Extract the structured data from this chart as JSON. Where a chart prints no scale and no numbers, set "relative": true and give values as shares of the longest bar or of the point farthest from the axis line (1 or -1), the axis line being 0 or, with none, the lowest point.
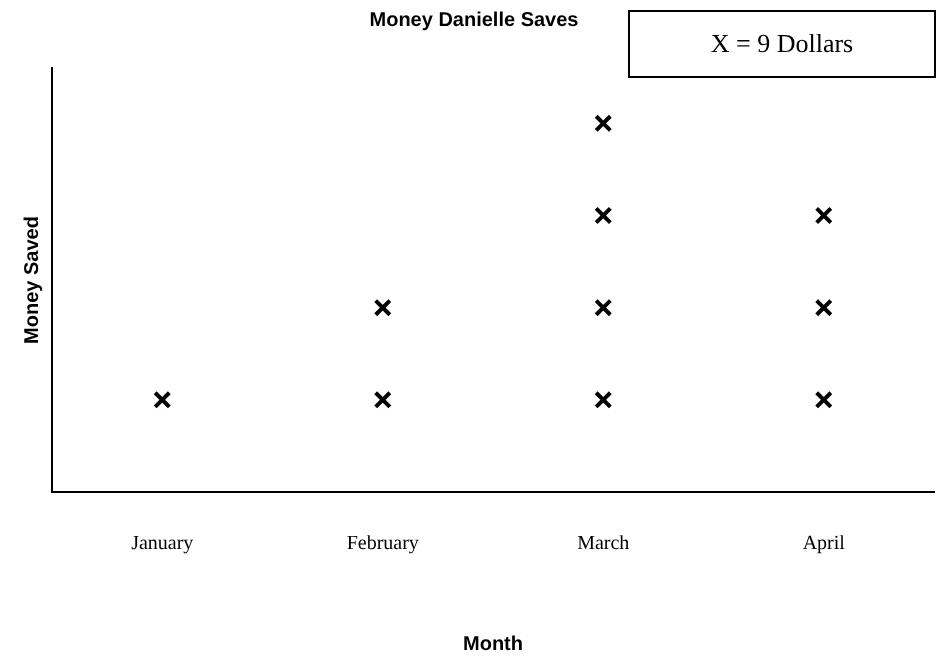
{
  "chart_data": {
    "type": "scatter",
    "title": "Money Danielle Saves",
    "xlabel": "Month",
    "ylabel": "Money Saved",
    "relative": true,
    "marker": "cross",
    "categories": [
      "January",
      "February",
      "March",
      "April"
    ],
    "series": [
      {
        "color": "#000000",
        "x": [
          "January",
          "February",
          "February",
          "March",
          "March",
          "March",
          "March",
          "April",
          "April",
          "April"
        ],
        "values": [
          0.25,
          0.25,
          0.5,
          0.25,
          0.5,
          0.75,
          1,
          0.25,
          0.5,
          0.75
        ]
      }
    ],
    "annotations": [
      "X = 9 Dollars"
    ]
  }
}
